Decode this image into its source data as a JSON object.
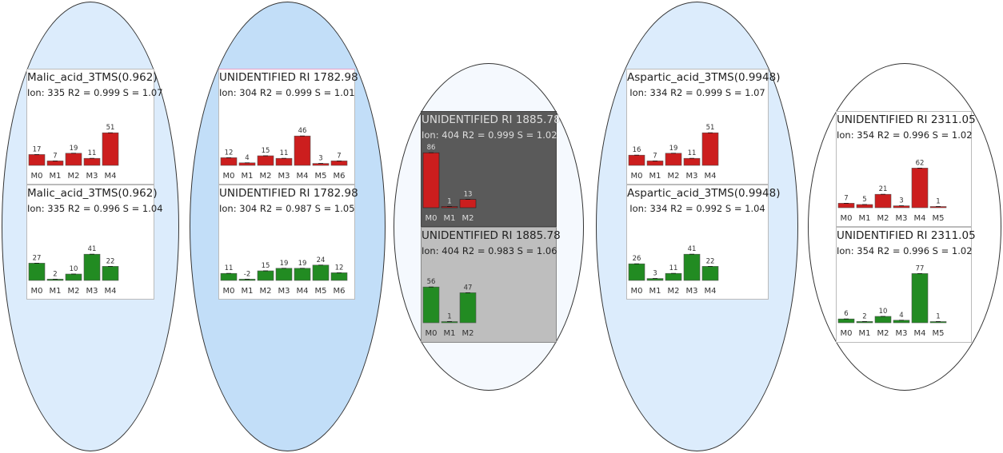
{
  "colors": {
    "increase_bar": "#cc1e1e",
    "decrease_bar": "#228b22",
    "ellipse_1": "#dcecfc",
    "ellipse_2": "#c2def8",
    "ellipse_3": "#f5f9fe",
    "ellipse_4": "#dcecfc",
    "ellipse_5": "#ffffff"
  },
  "chart_data": [
    {
      "type": "bar",
      "title": "Malic_acid_3TMS(0.962)",
      "subtitle": "Ion: 335 R2 = 0.999 S = 1.07",
      "categories": [
        "M0",
        "M1",
        "M2",
        "M3",
        "M4"
      ],
      "values": [
        17,
        7,
        19,
        11,
        51
      ],
      "color": "red"
    },
    {
      "type": "bar",
      "title": "Malic_acid_3TMS(0.962)",
      "subtitle": "Ion: 335 R2 = 0.996 S = 1.04",
      "categories": [
        "M0",
        "M1",
        "M2",
        "M3",
        "M4"
      ],
      "values": [
        27,
        2,
        10,
        41,
        22
      ],
      "color": "green"
    },
    {
      "type": "bar",
      "title": "UNIDENTIFIED RI 1782.98",
      "subtitle": "Ion: 304 R2 = 0.999 S = 1.01",
      "categories": [
        "M0",
        "M1",
        "M2",
        "M3",
        "M4",
        "M5",
        "M6"
      ],
      "values": [
        12,
        4,
        15,
        11,
        46,
        3,
        7
      ],
      "color": "red"
    },
    {
      "type": "bar",
      "title": "UNIDENTIFIED RI 1782.98",
      "subtitle": "Ion: 304 R2 = 0.987 S = 1.05",
      "categories": [
        "M0",
        "M1",
        "M2",
        "M3",
        "M4",
        "M5",
        "M6"
      ],
      "values": [
        11,
        -2,
        15,
        19,
        19,
        24,
        12
      ],
      "color": "green"
    },
    {
      "type": "bar",
      "title": "UNIDENTIFIED RI 1885.78",
      "subtitle": "Ion: 404 R2 = 0.999 S = 1.02",
      "categories": [
        "M0",
        "M1",
        "M2"
      ],
      "values": [
        86,
        1,
        13
      ],
      "color": "red"
    },
    {
      "type": "bar",
      "title": "UNIDENTIFIED RI 1885.78",
      "subtitle": "Ion: 404 R2 = 0.983 S = 1.06",
      "categories": [
        "M0",
        "M1",
        "M2"
      ],
      "values": [
        56,
        1,
        47
      ],
      "color": "green"
    },
    {
      "type": "bar",
      "title": "Aspartic_acid_3TMS(0.9948)",
      "subtitle": "Ion: 334 R2 = 0.999 S = 1.07",
      "categories": [
        "M0",
        "M1",
        "M2",
        "M3",
        "M4"
      ],
      "values": [
        16,
        7,
        19,
        11,
        51
      ],
      "color": "red"
    },
    {
      "type": "bar",
      "title": "Aspartic_acid_3TMS(0.9948)",
      "subtitle": "Ion: 334 R2 = 0.992 S = 1.04",
      "categories": [
        "M0",
        "M1",
        "M2",
        "M3",
        "M4"
      ],
      "values": [
        26,
        3,
        11,
        41,
        22
      ],
      "color": "green"
    },
    {
      "type": "bar",
      "title": "UNIDENTIFIED RI 2311.05",
      "subtitle": "Ion: 354 R2 = 0.996 S = 1.02",
      "categories": [
        "M0",
        "M1",
        "M2",
        "M3",
        "M4",
        "M5"
      ],
      "values": [
        7,
        5,
        21,
        3,
        62,
        1
      ],
      "color": "red"
    },
    {
      "type": "bar",
      "title": "UNIDENTIFIED RI 2311.05",
      "subtitle": "Ion: 354 R2 = 0.996 S = 1.02",
      "categories": [
        "M0",
        "M1",
        "M2",
        "M3",
        "M4",
        "M5"
      ],
      "values": [
        6,
        2,
        10,
        4,
        77,
        1
      ],
      "color": "green"
    }
  ]
}
